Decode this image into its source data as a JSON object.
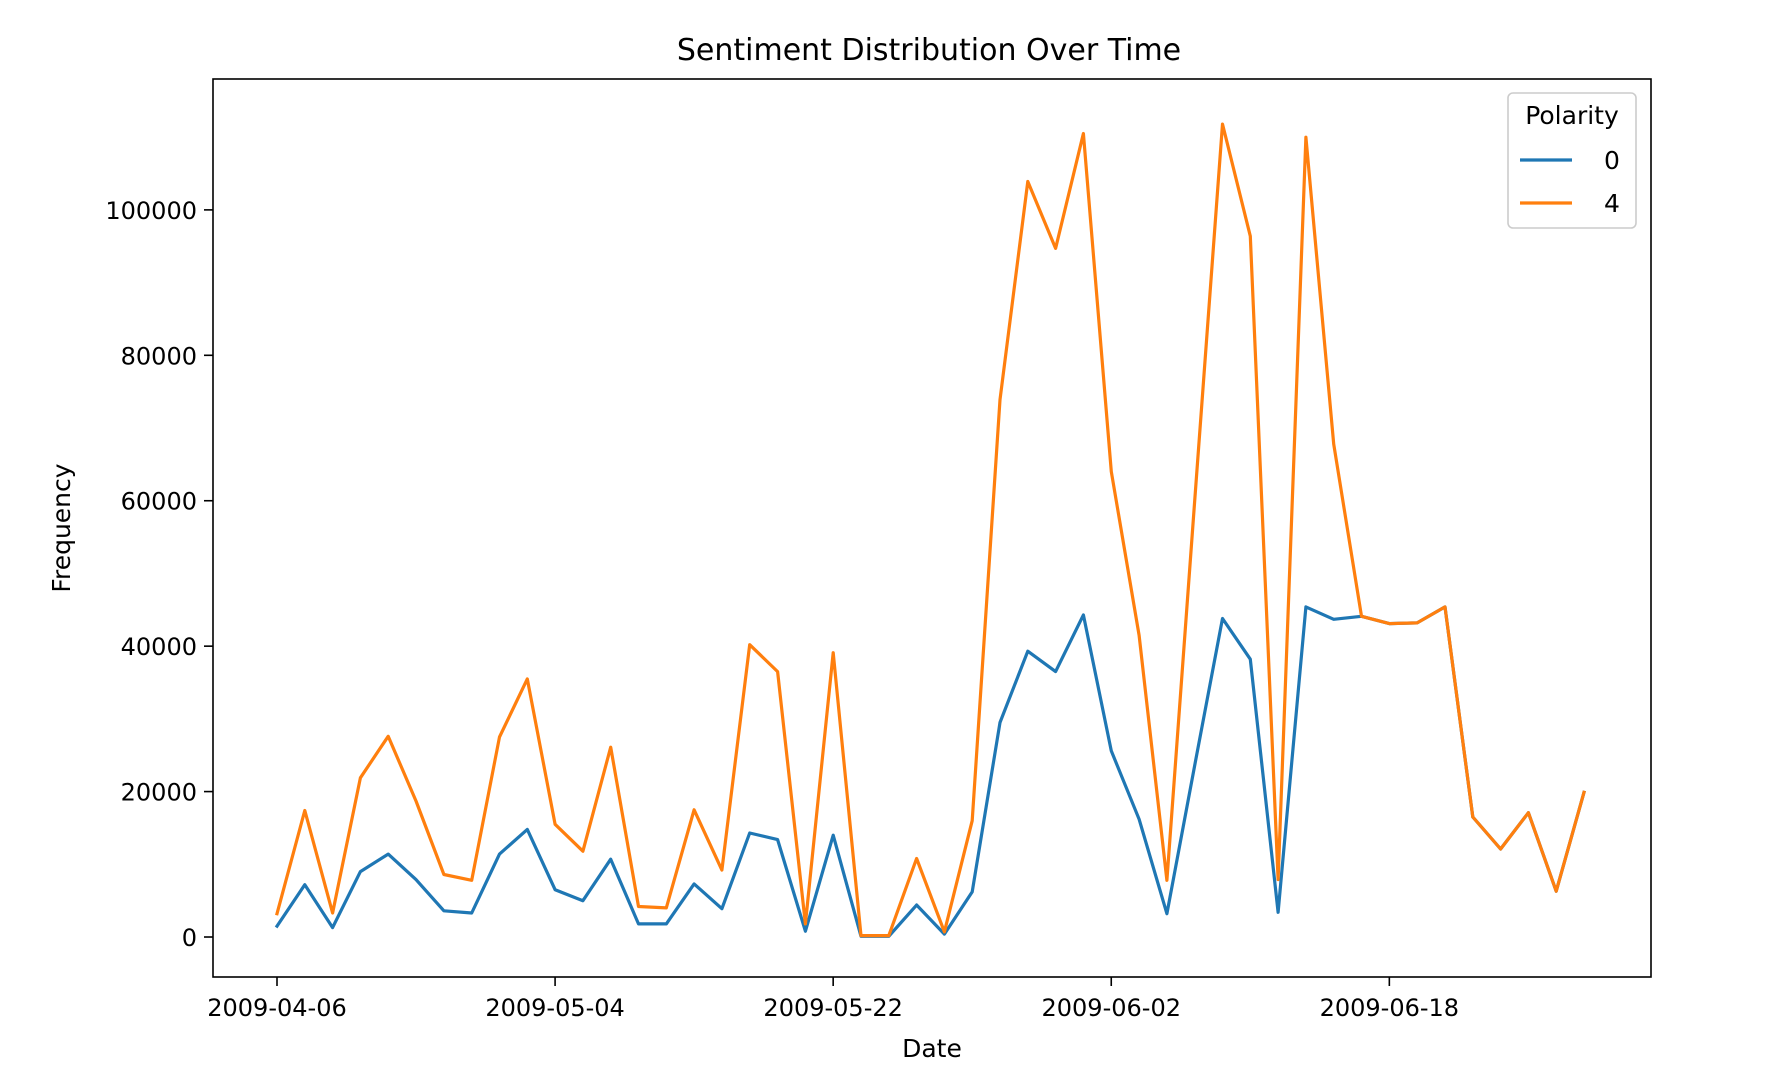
{
  "chart_data": {
    "type": "line",
    "title": "Sentiment Distribution Over Time",
    "xlabel": "Date",
    "ylabel": "Frequency",
    "x": [
      "2009-04-06",
      "2009-04-07",
      "2009-04-17",
      "2009-04-18",
      "2009-04-19",
      "2009-04-20",
      "2009-04-21",
      "2009-05-01",
      "2009-05-02",
      "2009-05-03",
      "2009-05-04",
      "2009-05-09",
      "2009-05-10",
      "2009-05-11",
      "2009-05-13",
      "2009-05-14",
      "2009-05-16",
      "2009-05-17",
      "2009-05-18",
      "2009-05-21",
      "2009-05-22",
      "2009-05-23",
      "2009-05-25",
      "2009-05-26",
      "2009-05-27",
      "2009-05-28",
      "2009-05-29",
      "2009-05-30",
      "2009-05-31",
      "2009-06-01",
      "2009-06-02",
      "2009-06-03",
      "2009-06-04",
      "2009-06-05",
      "2009-06-06",
      "2009-06-07",
      "2009-06-14",
      "2009-06-15",
      "2009-06-16",
      "2009-06-17",
      "2009-06-18",
      "2009-06-19",
      "2009-06-20",
      "2009-06-21",
      "2009-06-22",
      "2009-06-23",
      "2009-06-24",
      "2009-06-25"
    ],
    "xticks": [
      "2009-04-06",
      "2009-05-04",
      "2009-05-22",
      "2009-06-02",
      "2009-06-18"
    ],
    "ylim": [
      -5500,
      118000
    ],
    "yticks": [
      0,
      20000,
      40000,
      60000,
      80000,
      100000
    ],
    "series": [
      {
        "name": "0",
        "color": "#1f77b4",
        "values": [
          1500,
          7200,
          1300,
          9000,
          11400,
          7900,
          3600,
          3300,
          11400,
          14800,
          6500,
          5000,
          10700,
          1800,
          1800,
          7300,
          3900,
          14300,
          13400,
          800,
          14000,
          100,
          100,
          4400,
          400,
          6200,
          29500,
          39300,
          36500,
          44300,
          25600,
          16200,
          3200,
          23600,
          43800,
          38200,
          3400,
          45400,
          43700,
          44100,
          43100,
          43200,
          45400,
          16500,
          12100,
          17100,
          6300,
          19900
        ]
      },
      {
        "name": "4",
        "color": "#ff7f0e",
        "values": [
          3200,
          17400,
          3300,
          21900,
          27600,
          18700,
          8600,
          7800,
          27500,
          35500,
          15500,
          11800,
          26100,
          4200,
          4000,
          17500,
          9200,
          40200,
          36500,
          1800,
          39100,
          200,
          200,
          10800,
          700,
          16000,
          73900,
          103900,
          94700,
          110500,
          64000,
          41500,
          7800,
          60000,
          111800,
          96400,
          7900,
          110000,
          67800,
          44100,
          43100,
          43200,
          45400,
          16500,
          12100,
          17100,
          6300,
          19900
        ]
      }
    ],
    "legend": {
      "title": "Polarity",
      "placement": "top-right"
    },
    "grid": false
  }
}
